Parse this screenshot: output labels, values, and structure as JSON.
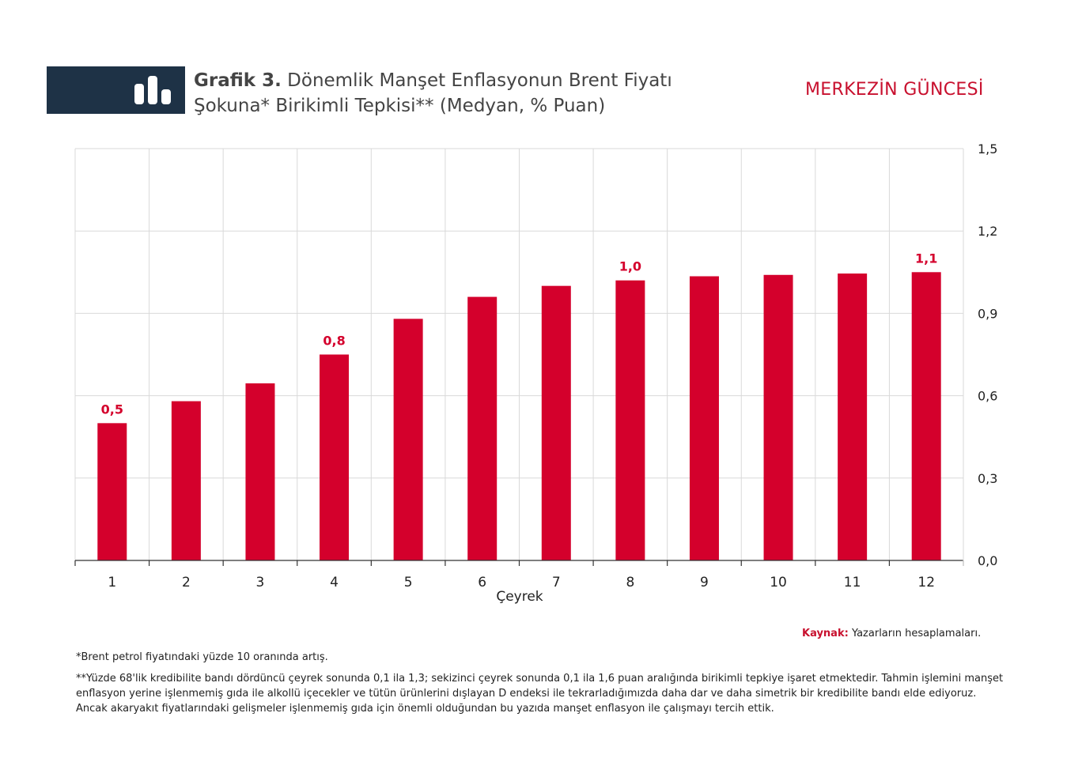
{
  "header": {
    "title_bold": "Grafik 3.",
    "title_line1": "Dönemlik Manşet Enflasyonun Brent Fiyatı",
    "title_line2": "Şokuna* Birikimli Tepkisi** (Medyan, % Puan)",
    "brand": "MERKEZİN GÜNCESİ",
    "icon": "bar-chart-icon"
  },
  "chart_data": {
    "type": "bar",
    "categories": [
      "1",
      "2",
      "3",
      "4",
      "5",
      "6",
      "7",
      "8",
      "9",
      "10",
      "11",
      "12"
    ],
    "values": [
      0.5,
      0.58,
      0.645,
      0.75,
      0.88,
      0.96,
      1.0,
      1.02,
      1.035,
      1.04,
      1.045,
      1.05
    ],
    "data_labels": [
      {
        "index": 0,
        "text": "0,5"
      },
      {
        "index": 3,
        "text": "0,8"
      },
      {
        "index": 7,
        "text": "1,0"
      },
      {
        "index": 11,
        "text": "1,1"
      }
    ],
    "xlabel": "Çeyrek",
    "ylabel": "",
    "ylim": [
      0,
      1.5
    ],
    "yticks": [
      0,
      0.3,
      0.6,
      0.9,
      1.2,
      1.5
    ],
    "ytick_labels": [
      "0,0",
      "0,3",
      "0,6",
      "0,9",
      "1,2",
      "1,5"
    ],
    "y_axis_side": "right",
    "grid": true,
    "bar_color": "#d4002c",
    "label_color": "#d4002c"
  },
  "footer": {
    "source_label": "Kaynak:",
    "source_text": "Yazarların hesaplamaları.",
    "note1": "*Brent petrol fiyatındaki yüzde 10 oranında artış.",
    "note2": "**Yüzde 68'lik kredibilite bandı dördüncü çeyrek sonunda 0,1 ila 1,3; sekizinci çeyrek sonunda 0,1 ila 1,6 puan aralığında birikimli tepkiye işaret etmektedir. Tahmin işlemini manşet enflasyon yerine işlenmemiş gıda ile alkollü içecekler ve tütün ürünlerini dışlayan D endeksi ile tekrarladığımızda daha dar ve daha simetrik bir kredibilite bandı elde ediyoruz. Ancak akaryakıt fiyatlarındaki gelişmeler işlenmemiş gıda için önemli olduğundan bu yazıda manşet enflasyon ile çalışmayı tercih ettik."
  }
}
